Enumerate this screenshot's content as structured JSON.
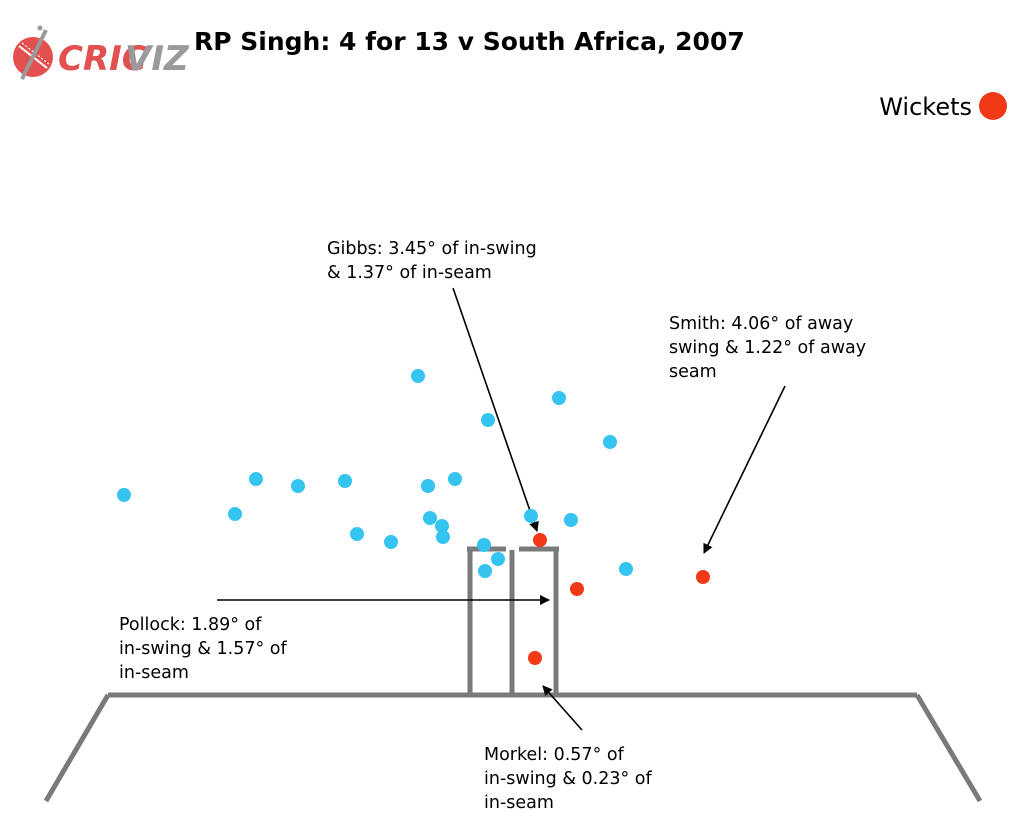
{
  "brand": {
    "logo_text_a": "CRIC",
    "logo_text_b": "VIZ",
    "logo_color": "#e2504f",
    "logo_grey": "#9a9a9a"
  },
  "chart_data": {
    "type": "scatter",
    "title": "RP Singh: 4 for 13 v South Africa, 2007",
    "legend": {
      "label": "Wickets",
      "position": "top-right"
    },
    "colors": {
      "delivery": "#35c4ef",
      "wicket": "#f03a17",
      "stumps": "#7a7a7a"
    },
    "series": [
      {
        "kind": "delivery",
        "points": [
          [
            124,
            495
          ],
          [
            418,
            376
          ],
          [
            488,
            420
          ],
          [
            559,
            398
          ],
          [
            610,
            442
          ],
          [
            256,
            479
          ],
          [
            298,
            486
          ],
          [
            345,
            481
          ],
          [
            428,
            486
          ],
          [
            455,
            479
          ],
          [
            235,
            514
          ],
          [
            357,
            534
          ],
          [
            391,
            542
          ],
          [
            430,
            518
          ],
          [
            442,
            526
          ],
          [
            443,
            537
          ],
          [
            531,
            516
          ],
          [
            571,
            520
          ],
          [
            484,
            545
          ],
          [
            498,
            559
          ],
          [
            485,
            571
          ],
          [
            626,
            569
          ]
        ]
      },
      {
        "kind": "wicket",
        "name": "Wickets",
        "points": [
          [
            540,
            540
          ],
          [
            577,
            589
          ],
          [
            703,
            577
          ],
          [
            535,
            658
          ]
        ]
      }
    ],
    "annotations": [
      {
        "lines": [
          "Gibbs: 3.45° of in-swing",
          "& 1.37° of in-seam"
        ]
      },
      {
        "lines": [
          "Smith: 4.06° of away",
          "swing & 1.22° of away",
          "seam"
        ]
      },
      {
        "lines": [
          "Pollock: 1.89° of",
          "in-swing & 1.57° of",
          "in-seam"
        ]
      },
      {
        "lines": [
          "Morkel: 0.57° of",
          "in-swing & 0.23° of",
          "in-seam"
        ]
      }
    ]
  }
}
